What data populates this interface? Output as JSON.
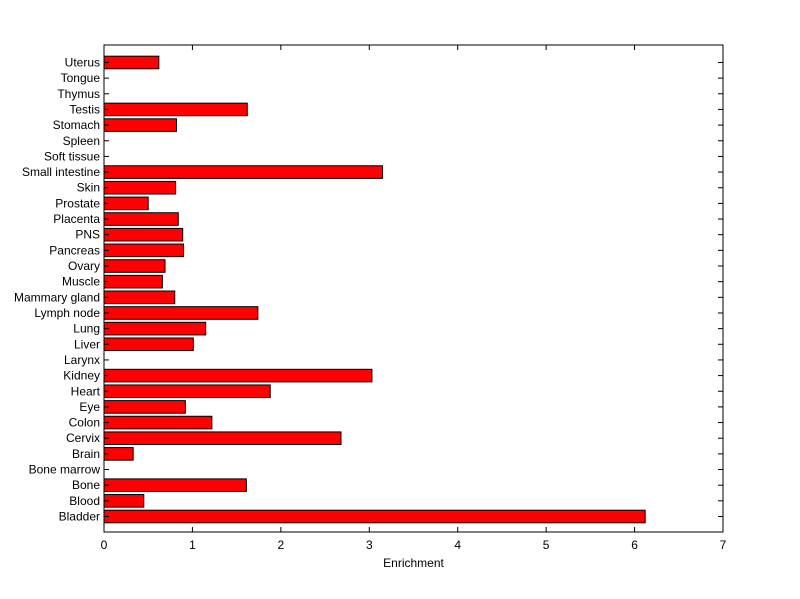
{
  "chart_data": {
    "type": "bar",
    "orientation": "horizontal",
    "title": "",
    "xlabel": "Enrichment",
    "ylabel": "",
    "xlim": [
      0,
      7
    ],
    "xticks": [
      0,
      1,
      2,
      3,
      4,
      5,
      6,
      7
    ],
    "grid": false,
    "bar_color": "#ff0000",
    "bar_edge_color": "#000000",
    "categories": [
      "Bladder",
      "Blood",
      "Bone",
      "Bone marrow",
      "Brain",
      "Cervix",
      "Colon",
      "Eye",
      "Heart",
      "Kidney",
      "Larynx",
      "Liver",
      "Lung",
      "Lymph node",
      "Mammary gland",
      "Muscle",
      "Ovary",
      "Pancreas",
      "PNS",
      "Placenta",
      "Prostate",
      "Skin",
      "Small intestine",
      "Soft tissue",
      "Spleen",
      "Stomach",
      "Testis",
      "Thymus",
      "Tongue",
      "Uterus"
    ],
    "values": [
      6.12,
      0.45,
      1.61,
      0,
      0.33,
      2.68,
      1.22,
      0.92,
      1.88,
      3.03,
      0,
      1.01,
      1.15,
      1.74,
      0.8,
      0.66,
      0.69,
      0.9,
      0.89,
      0.84,
      0.5,
      0.81,
      3.15,
      0,
      0,
      0.82,
      1.62,
      0,
      0,
      0.62
    ]
  }
}
